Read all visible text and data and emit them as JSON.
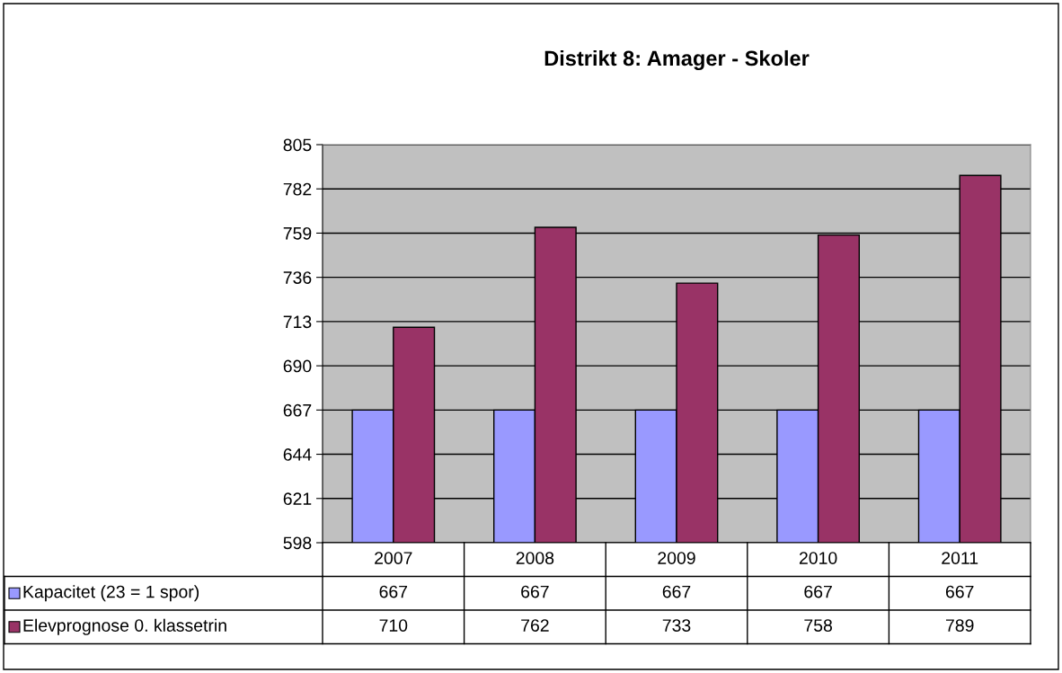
{
  "chart_data": {
    "type": "bar",
    "title": "Distrikt 8: Amager - Skoler",
    "categories": [
      "2007",
      "2008",
      "2009",
      "2010",
      "2011"
    ],
    "series": [
      {
        "name": "Kapacitet (23 = 1 spor)",
        "color": "#9999ff",
        "values": [
          667,
          667,
          667,
          667,
          667
        ]
      },
      {
        "name": "Elevprognose 0. klassetrin",
        "color": "#993366",
        "values": [
          710,
          762,
          733,
          758,
          789
        ]
      }
    ],
    "ylim": [
      598,
      805
    ],
    "yticks": [
      598,
      621,
      644,
      667,
      690,
      713,
      736,
      759,
      782,
      805
    ],
    "grid": "y",
    "legend": "bottom",
    "data_labels": true
  }
}
